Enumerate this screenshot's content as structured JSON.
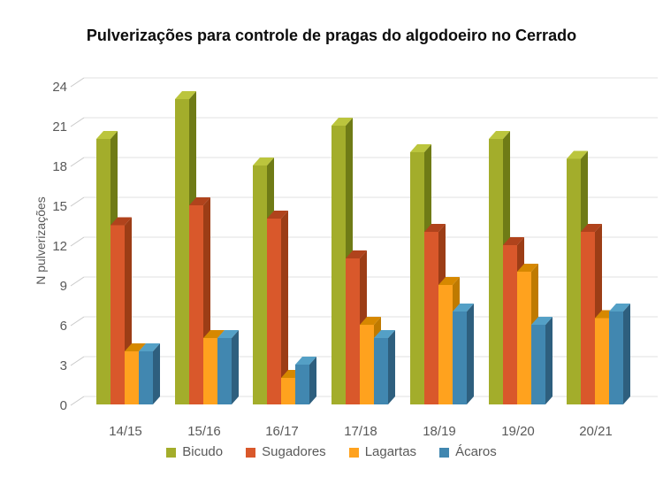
{
  "chart_data": {
    "type": "bar",
    "style": "3d-clustered-column",
    "title": "Pulverizações para controle de pragas do algodoeiro no Cerrado",
    "xlabel": "",
    "ylabel": "N pulverizações",
    "categories": [
      "14/15",
      "15/16",
      "16/17",
      "17/18",
      "18/19",
      "19/20",
      "20/21"
    ],
    "series": [
      {
        "name": "Bicudo",
        "color": "#A3AD2B",
        "color_top": "#BBC53D",
        "color_side": "#6F7B16",
        "values": [
          20,
          23,
          18,
          21,
          19,
          20,
          18.5
        ]
      },
      {
        "name": "Sugadores",
        "color": "#D9582B",
        "color_top": "#B0431C",
        "color_side": "#9C3D16",
        "values": [
          13.5,
          15,
          14,
          11,
          13,
          12,
          13
        ]
      },
      {
        "name": "Lagartas",
        "color": "#FFA21E",
        "color_top": "#D68800",
        "color_side": "#BF7A00",
        "values": [
          4,
          5,
          2,
          6,
          9,
          10,
          6.5
        ]
      },
      {
        "name": "Ácaros",
        "color": "#4187B0",
        "color_top": "#54A0C6",
        "color_side": "#2E5F7E",
        "values": [
          4,
          5,
          3,
          5,
          7,
          6,
          7
        ]
      }
    ],
    "ylim": [
      0,
      24
    ],
    "yticks": [
      0,
      3,
      6,
      9,
      12,
      15,
      18,
      21,
      24
    ],
    "grid": true,
    "legend_position": "bottom"
  },
  "theme": {
    "background": "#FFFFFF",
    "title_color": "#0D0D0D",
    "text_color": "#595959",
    "grid_color": "#E2E2E2",
    "axis_connector_color": "#C9C9C9"
  }
}
